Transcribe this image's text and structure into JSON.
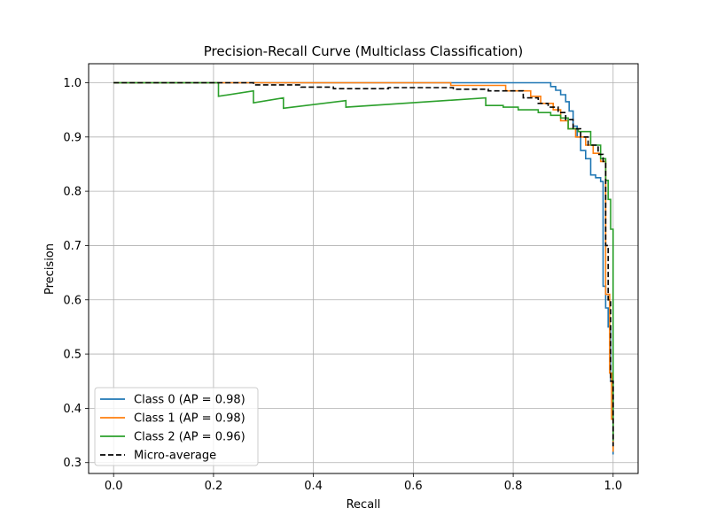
{
  "chart_data": {
    "type": "line",
    "title": "Precision-Recall Curve (Multiclass Classification)",
    "xlabel": "Recall",
    "ylabel": "Precision",
    "xlim": [
      -0.05,
      1.05
    ],
    "ylim": [
      0.28,
      1.035
    ],
    "xticks": [
      0.0,
      0.2,
      0.4,
      0.6,
      0.8,
      1.0
    ],
    "xtick_labels": [
      "0.0",
      "0.2",
      "0.4",
      "0.6",
      "0.8",
      "1.0"
    ],
    "yticks": [
      0.3,
      0.4,
      0.5,
      0.6,
      0.7,
      0.8,
      0.9,
      1.0
    ],
    "ytick_labels": [
      "0.3",
      "0.4",
      "0.5",
      "0.6",
      "0.7",
      "0.8",
      "0.9",
      "1.0"
    ],
    "grid": true,
    "legend_position": "lower-left",
    "series": [
      {
        "name": "Class 0 (AP = 0.98)",
        "color": "#1f77b4",
        "style": "solid",
        "x": [
          0.0,
          0.875,
          0.875,
          0.885,
          0.885,
          0.895,
          0.895,
          0.905,
          0.905,
          0.912,
          0.912,
          0.92,
          0.92,
          0.928,
          0.928,
          0.935,
          0.935,
          0.945,
          0.945,
          0.955,
          0.955,
          0.965,
          0.965,
          0.975,
          0.975,
          0.98,
          0.98,
          0.985,
          0.985,
          0.99,
          0.99,
          0.995,
          0.995,
          1.0,
          1.0
        ],
        "y": [
          1.0,
          1.0,
          0.993,
          0.993,
          0.986,
          0.986,
          0.978,
          0.978,
          0.965,
          0.965,
          0.948,
          0.948,
          0.92,
          0.92,
          0.9,
          0.9,
          0.875,
          0.875,
          0.86,
          0.86,
          0.83,
          0.83,
          0.825,
          0.825,
          0.818,
          0.818,
          0.625,
          0.625,
          0.585,
          0.585,
          0.55,
          0.55,
          0.45,
          0.45,
          0.315
        ]
      },
      {
        "name": "Class 1 (AP = 0.98)",
        "color": "#ff7f0e",
        "style": "solid",
        "x": [
          0.0,
          0.675,
          0.675,
          0.785,
          0.785,
          0.835,
          0.835,
          0.855,
          0.855,
          0.88,
          0.88,
          0.895,
          0.895,
          0.91,
          0.91,
          0.925,
          0.925,
          0.945,
          0.945,
          0.96,
          0.96,
          0.975,
          0.975,
          0.985,
          0.985,
          0.993,
          0.993,
          0.997,
          0.997,
          1.0,
          1.0
        ],
        "y": [
          1.0,
          1.0,
          0.995,
          0.995,
          0.985,
          0.985,
          0.975,
          0.975,
          0.962,
          0.962,
          0.95,
          0.95,
          0.93,
          0.93,
          0.915,
          0.915,
          0.9,
          0.9,
          0.885,
          0.885,
          0.87,
          0.87,
          0.855,
          0.855,
          0.61,
          0.61,
          0.465,
          0.465,
          0.38,
          0.38,
          0.32
        ]
      },
      {
        "name": "Class 2 (AP = 0.96)",
        "color": "#2ca02c",
        "style": "solid",
        "x": [
          0.0,
          0.21,
          0.21,
          0.28,
          0.28,
          0.34,
          0.34,
          0.465,
          0.465,
          0.745,
          0.745,
          0.78,
          0.78,
          0.81,
          0.81,
          0.85,
          0.85,
          0.875,
          0.875,
          0.895,
          0.895,
          0.91,
          0.91,
          0.93,
          0.93,
          0.955,
          0.955,
          0.975,
          0.975,
          0.985,
          0.985,
          0.99,
          0.99,
          0.995,
          0.995,
          1.0,
          1.0
        ],
        "y": [
          1.0,
          1.0,
          0.975,
          0.985,
          0.963,
          0.972,
          0.953,
          0.967,
          0.955,
          0.972,
          0.958,
          0.958,
          0.955,
          0.955,
          0.95,
          0.95,
          0.945,
          0.945,
          0.94,
          0.94,
          0.935,
          0.935,
          0.915,
          0.915,
          0.91,
          0.91,
          0.885,
          0.885,
          0.86,
          0.86,
          0.82,
          0.82,
          0.785,
          0.785,
          0.73,
          0.73,
          0.34
        ]
      },
      {
        "name": "Micro-average",
        "color": "#000000",
        "style": "dashed",
        "x": [
          0.0,
          0.28,
          0.28,
          0.375,
          0.375,
          0.44,
          0.44,
          0.55,
          0.55,
          0.68,
          0.68,
          0.75,
          0.75,
          0.82,
          0.82,
          0.85,
          0.85,
          0.87,
          0.87,
          0.89,
          0.89,
          0.905,
          0.905,
          0.92,
          0.92,
          0.935,
          0.935,
          0.95,
          0.95,
          0.97,
          0.97,
          0.98,
          0.98,
          0.985,
          0.985,
          0.99,
          0.99,
          0.995,
          0.995,
          1.0,
          1.0
        ],
        "y": [
          1.0,
          1.0,
          0.996,
          0.996,
          0.992,
          0.992,
          0.989,
          0.989,
          0.991,
          0.991,
          0.988,
          0.988,
          0.985,
          0.985,
          0.972,
          0.972,
          0.962,
          0.962,
          0.955,
          0.955,
          0.945,
          0.945,
          0.932,
          0.932,
          0.915,
          0.915,
          0.9,
          0.9,
          0.885,
          0.885,
          0.868,
          0.868,
          0.855,
          0.855,
          0.7,
          0.7,
          0.6,
          0.6,
          0.45,
          0.45,
          0.33
        ]
      }
    ]
  }
}
